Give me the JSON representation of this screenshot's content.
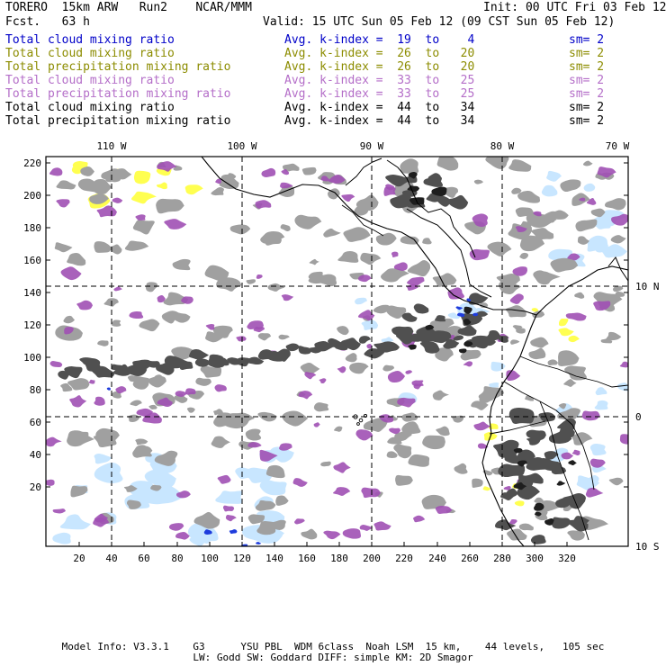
{
  "header": {
    "title": "TORERO  15km ARW   Run2    NCAR/MMM",
    "init": "Init: 00 UTC Fri 03 Feb 12",
    "forecast": "Fcst.   63 h",
    "valid": "Valid: 15 UTC Sun 05 Feb 12 (09 CST Sun 05 Feb 12)"
  },
  "legend": [
    {
      "field": "Total cloud mixing ratio",
      "index": "Avg. k-index =  19  to    4",
      "sm": "sm= 2",
      "color": "#0000c8"
    },
    {
      "field": "Total cloud mixing ratio",
      "index": "Avg. k-index =  26  to   20",
      "sm": "sm= 2",
      "color": "#8c8c00"
    },
    {
      "field": "Total precipitation mixing ratio",
      "index": "Avg. k-index =  26  to   20",
      "sm": "sm= 2",
      "color": "#8c8c00"
    },
    {
      "field": "Total cloud mixing ratio",
      "index": "Avg. k-index =  33  to   25",
      "sm": "sm= 2",
      "color": "#b46ec8"
    },
    {
      "field": "Total precipitation mixing ratio",
      "index": "Avg. k-index =  33  to   25",
      "sm": "sm= 2",
      "color": "#b46ec8"
    },
    {
      "field": "Total cloud mixing ratio",
      "index": "Avg. k-index =  44  to   34",
      "sm": "sm= 2",
      "color": "#000000"
    },
    {
      "field": "Total precipitation mixing ratio",
      "index": "Avg. k-index =  44  to   34",
      "sm": "sm= 2",
      "color": "#000000"
    }
  ],
  "map": {
    "lon_labels": [
      "110 W",
      "100 W",
      "90 W",
      "80 W",
      "70 W"
    ],
    "lat_labels": [
      "10 N",
      "0",
      "10 S"
    ],
    "y_ticks": [
      "220",
      "200",
      "180",
      "160",
      "140",
      "120",
      "100",
      "80",
      "60",
      "40",
      "20"
    ],
    "x_ticks": [
      "20",
      "40",
      "60",
      "80",
      "100",
      "120",
      "140",
      "160",
      "180",
      "200",
      "220",
      "240",
      "260",
      "280",
      "300",
      "320"
    ],
    "colors": {
      "gray": "#a0a0a0",
      "dark_gray": "#505050",
      "black_core": "#1e1e1e",
      "purple": "#a050b4",
      "yellow": "#ffff50",
      "light_blue": "#c8e6ff",
      "blue": "#1e3cdc",
      "coast": "#000000",
      "grid": "#000000"
    }
  },
  "footer": {
    "line1": "Model Info: V3.3.1    G3      YSU PBL  WDM 6class  Noah LSM  15 km,    44 levels,   105 sec",
    "line2": "LW: Godd SW: Goddard DIFF: simple KM: 2D Smagor"
  }
}
